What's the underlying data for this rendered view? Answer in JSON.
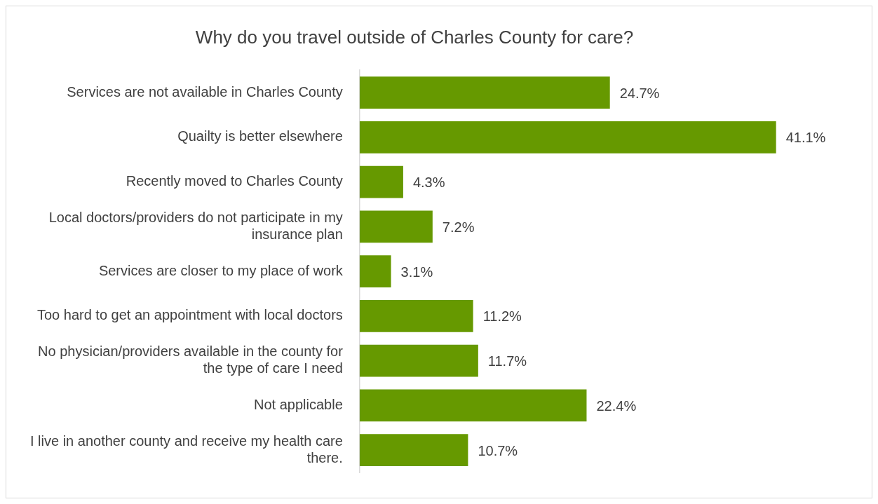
{
  "chart_data": {
    "type": "bar",
    "orientation": "horizontal",
    "title": "Why do you travel outside of Charles County for care?",
    "categories": [
      "Services are not available in Charles County",
      "Quailty is better elsewhere",
      "Recently moved to Charles County",
      "Local doctors/providers do not participate in my insurance plan",
      "Services are closer to my place of work",
      "Too hard to get an appointment with local doctors",
      "No physician/providers available in the county for the type of care I need",
      "Not applicable",
      "I live in another county and receive my health care there."
    ],
    "values": [
      24.7,
      41.1,
      4.3,
      7.2,
      3.1,
      11.2,
      11.7,
      22.4,
      10.7
    ],
    "value_labels": [
      "24.7%",
      "41.1%",
      "4.3%",
      "7.2%",
      "3.1%",
      "11.2%",
      "11.7%",
      "22.4%",
      "10.7%"
    ],
    "color": "#669900",
    "legend": false,
    "tick_labels": "y"
  }
}
